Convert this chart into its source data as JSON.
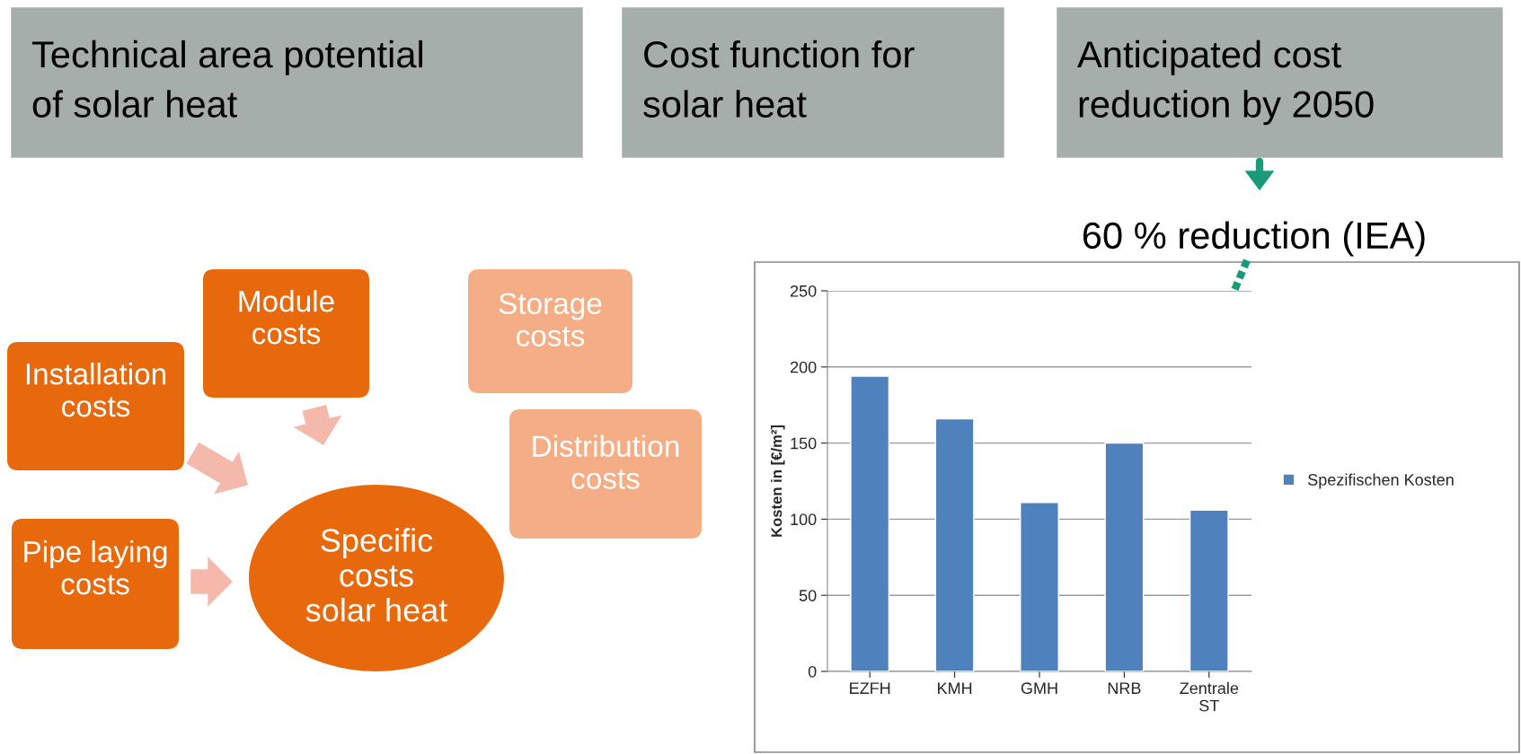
{
  "chart_data": [
    {
      "type": "other",
      "annotations": [
        "Technical area potential\nof solar heat",
        "Cost function for\nsolar heat",
        "Anticipated cost\nreduction by 2050",
        "60 % reduction (IEA)",
        "Module\ncosts",
        "Storage\ncosts",
        "Installation\ncosts",
        "Distribution\ncosts",
        "Pipe laying\ncosts",
        "Specific\ncosts\nsolar heat"
      ]
    },
    {
      "type": "bar",
      "categories": [
        "EZFH",
        "KMH",
        "GMH",
        "NRB",
        "Zentrale\nST"
      ],
      "series": [
        {
          "name": "Spezifischen Kosten",
          "color": "#4f81bd",
          "values": [
            194,
            166,
            111,
            150,
            106
          ]
        }
      ],
      "ylabel": "Kosten in [€/m²]",
      "ylim": [
        0,
        250
      ],
      "yticks": [
        0,
        50,
        100,
        150,
        200,
        250
      ],
      "grid": "y",
      "legend": "right"
    }
  ]
}
